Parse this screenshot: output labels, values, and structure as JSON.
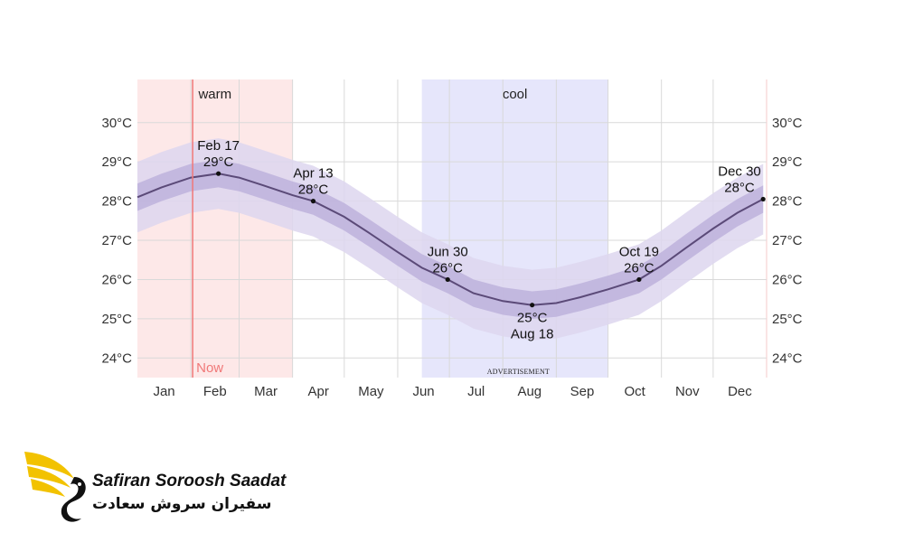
{
  "chart_data": {
    "type": "line",
    "x_ticks": [
      "Jan",
      "Feb",
      "Mar",
      "Apr",
      "May",
      "Jun",
      "Jul",
      "Aug",
      "Sep",
      "Oct",
      "Nov",
      "Dec"
    ],
    "y_ticks": [
      "24°C",
      "25°C",
      "26°C",
      "27°C",
      "28°C",
      "29°C",
      "30°C"
    ],
    "ylim": [
      23.5,
      31.1
    ],
    "grid": true,
    "series": [
      {
        "x": [
          "Jan 1",
          "Jan 15",
          "Feb 1",
          "Feb 17",
          "Mar 1",
          "Mar 15",
          "Apr 1",
          "Apr 13",
          "May 1",
          "May 15",
          "Jun 1",
          "Jun 15",
          "Jun 30",
          "Jul 15",
          "Aug 1",
          "Aug 18",
          "Sep 1",
          "Sep 15",
          "Oct 1",
          "Oct 19",
          "Nov 1",
          "Nov 15",
          "Dec 1",
          "Dec 15",
          "Dec 30"
        ],
        "values": [
          28.1,
          28.35,
          28.6,
          28.7,
          28.6,
          28.4,
          28.15,
          28.0,
          27.6,
          27.2,
          26.7,
          26.3,
          26.0,
          25.65,
          25.45,
          25.35,
          25.4,
          25.55,
          25.75,
          26.0,
          26.35,
          26.8,
          27.3,
          27.7,
          28.05
        ],
        "band_inner": [
          0.35,
          0.35,
          0.35,
          0.35,
          0.35,
          0.35,
          0.35,
          0.35,
          0.35,
          0.35,
          0.35,
          0.35,
          0.35,
          0.35,
          0.35,
          0.35,
          0.35,
          0.35,
          0.35,
          0.35,
          0.35,
          0.35,
          0.35,
          0.35,
          0.35
        ],
        "band_outer": [
          0.9,
          0.9,
          0.9,
          0.9,
          0.9,
          0.9,
          0.9,
          0.9,
          0.9,
          0.9,
          0.9,
          0.9,
          0.9,
          0.9,
          0.9,
          0.9,
          0.9,
          0.9,
          0.9,
          0.9,
          0.9,
          0.9,
          0.9,
          0.9,
          0.9
        ]
      }
    ],
    "annotations": [
      {
        "date": "Feb 17",
        "value": "29°C",
        "y": 28.7,
        "position": "above"
      },
      {
        "date": "Apr 13",
        "value": "28°C",
        "y": 28.0,
        "position": "above"
      },
      {
        "date": "Jun 30",
        "value": "26°C",
        "y": 26.0,
        "position": "above"
      },
      {
        "date": "Aug 18",
        "value": "25°C",
        "y": 25.35,
        "position": "below"
      },
      {
        "date": "Oct 19",
        "value": "26°C",
        "y": 26.0,
        "position": "above"
      },
      {
        "date": "Dec 30",
        "value": "28°C",
        "y": 28.05,
        "position": "above"
      }
    ],
    "seasons": [
      {
        "label": "warm",
        "start": "Jan 1",
        "end": "Apr 1",
        "color": "#fde8e8"
      },
      {
        "label": "cool",
        "start": "Jun 15",
        "end": "Oct 1",
        "color": "#e6e6fb"
      }
    ],
    "now_marker": {
      "label": "Now",
      "date": "Feb 1",
      "color": "#f07878"
    },
    "line_color": "#5b4a78",
    "band_inner_color": "#bdb1dc",
    "band_outer_color": "#ddd6ef"
  },
  "watermark": {
    "text": "ADVERTISEMENT"
  },
  "logo": {
    "name_en": "Safiran Soroosh Saadat",
    "name_fa": "سفیران سروش سعادت"
  }
}
